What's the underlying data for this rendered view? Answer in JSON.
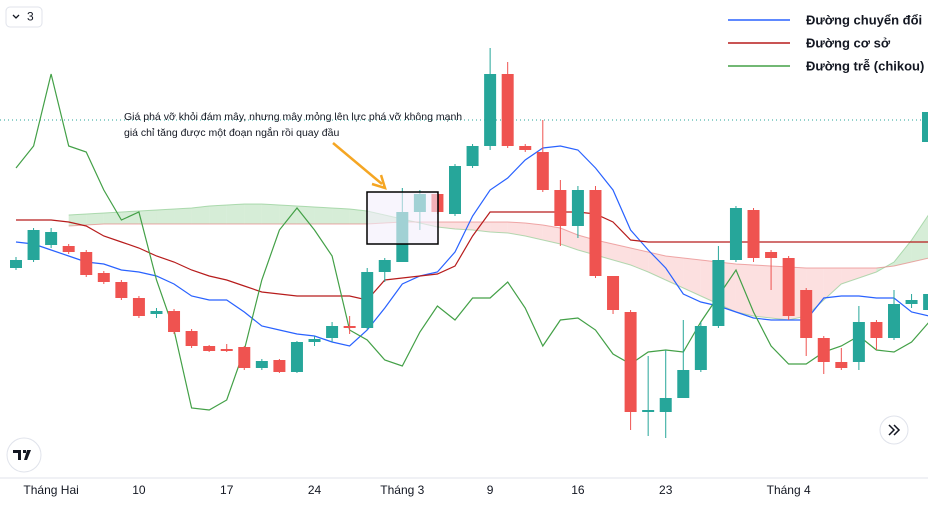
{
  "ui": {
    "interval_badge": "3"
  },
  "chart_data": {
    "type": "candlestick",
    "categories": [
      null,
      null,
      "Tháng Hai",
      null,
      null,
      null,
      null,
      "10",
      null,
      null,
      null,
      null,
      "17",
      null,
      null,
      null,
      null,
      "24",
      null,
      null,
      null,
      null,
      "Tháng 3",
      null,
      null,
      null,
      null,
      "9",
      null,
      null,
      null,
      null,
      "16",
      null,
      null,
      null,
      null,
      "23",
      null,
      null,
      null,
      null,
      null,
      null,
      "Tháng 4",
      null,
      null,
      null,
      null,
      null,
      null,
      null,
      null
    ],
    "open": [
      238,
      246,
      261,
      260,
      254,
      233,
      224,
      208,
      192,
      195,
      175,
      160,
      157,
      159,
      138,
      146,
      134,
      164,
      168,
      180,
      178,
      234,
      244,
      294,
      312,
      292,
      340,
      360,
      432,
      360,
      354,
      316,
      280,
      316,
      230,
      194,
      94,
      94,
      108,
      136,
      180,
      246,
      296,
      254,
      248,
      216,
      168,
      144,
      144,
      184,
      168,
      202,
      196
    ],
    "high": [
      249,
      278,
      278,
      262,
      256,
      235,
      226,
      210,
      198,
      197,
      177,
      161,
      162,
      160,
      147,
      147,
      165,
      170,
      184,
      190,
      238,
      248,
      318,
      316,
      314,
      342,
      362,
      458,
      444,
      362,
      386,
      326,
      320,
      320,
      230,
      196,
      150,
      156,
      186,
      184,
      260,
      300,
      298,
      256,
      250,
      218,
      170,
      158,
      200,
      186,
      216,
      212,
      216
    ],
    "low": [
      236,
      244,
      258,
      252,
      229,
      222,
      206,
      188,
      188,
      172,
      158,
      154,
      154,
      136,
      136,
      133,
      133,
      160,
      164,
      172,
      176,
      224,
      244,
      276,
      292,
      290,
      338,
      356,
      358,
      354,
      314,
      260,
      268,
      228,
      192,
      76,
      70,
      68,
      108,
      134,
      178,
      244,
      244,
      216,
      186,
      150,
      132,
      136,
      136,
      156,
      166,
      198,
      194
    ],
    "close": [
      246,
      276,
      274,
      254,
      231,
      224,
      208,
      190,
      195,
      174,
      160,
      155,
      155,
      138,
      145,
      134,
      164,
      167,
      180,
      178,
      234,
      246,
      294,
      312,
      294,
      340,
      360,
      432,
      360,
      356,
      316,
      280,
      316,
      230,
      196,
      94,
      96,
      108,
      136,
      180,
      246,
      298,
      248,
      248,
      190,
      168,
      144,
      138,
      184,
      168,
      202,
      206,
      212
    ],
    "up_color": "#26a69a",
    "down_color": "#ef5350",
    "series": [
      {
        "name": "Đường chuyển đổi",
        "color": "#2962ff",
        "values": [
          264,
          262,
          256,
          250,
          244,
          242,
          236,
          234,
          230,
          222,
          210,
          206,
          206,
          194,
          180,
          176,
          172,
          170,
          164,
          160,
          176,
          198,
          222,
          230,
          234,
          254,
          290,
          316,
          328,
          346,
          358,
          360,
          356,
          338,
          316,
          276,
          256,
          238,
          212,
          204,
          200,
          194,
          188,
          186,
          186,
          186,
          208,
          210,
          210,
          208,
          208,
          194,
          190
        ]
      },
      {
        "name": "Đường cơ sở",
        "color": "#b71c1c",
        "values": [
          286,
          286,
          286,
          284,
          280,
          270,
          264,
          258,
          250,
          244,
          236,
          230,
          226,
          220,
          214,
          212,
          210,
          210,
          210,
          210,
          206,
          226,
          228,
          230,
          232,
          240,
          270,
          294,
          294,
          294,
          294,
          294,
          294,
          292,
          284,
          266,
          264,
          264,
          264,
          264,
          264,
          264,
          264,
          264,
          264,
          264,
          264,
          264,
          264,
          264,
          264,
          264,
          264
        ]
      },
      {
        "name": "Đường trễ (chikou)",
        "color": "#43a047",
        "values": [
          338,
          360,
          432,
          360,
          354,
          316,
          286,
          294,
          226,
          176,
          98,
          96,
          106,
          156,
          226,
          276,
          298,
          276,
          250,
          176,
          166,
          146,
          140,
          174,
          200,
          186,
          208,
          208,
          224,
          198,
          160,
          186,
          188,
          176,
          152,
          142,
          154,
          156,
          154,
          184,
          210,
          236,
          194,
          160,
          142,
          142,
          154,
          160,
          170,
          156,
          154,
          164,
          184
        ]
      }
    ],
    "cloud": {
      "span_a": [
        null,
        null,
        null,
        291,
        292,
        293,
        294,
        295,
        296,
        297,
        298,
        300,
        301,
        302,
        302,
        301,
        300,
        299,
        298,
        297,
        295,
        291,
        287,
        283,
        279,
        277,
        276,
        274,
        273,
        270,
        266,
        262,
        256,
        251,
        246,
        241,
        234,
        226,
        218,
        210,
        202,
        194,
        190,
        188,
        186,
        190,
        206,
        222,
        228,
        234,
        244,
        266,
        292
      ],
      "span_b": [
        null,
        null,
        null,
        280,
        281,
        282,
        282,
        282,
        282,
        282,
        282,
        282,
        282,
        282,
        282,
        282,
        282,
        282,
        282,
        282,
        282,
        283,
        284,
        284,
        284,
        284,
        284,
        284,
        284,
        283,
        281,
        278,
        271,
        266,
        262,
        258,
        254,
        250,
        248,
        246,
        244,
        242,
        241,
        240,
        239,
        238,
        238,
        238,
        238,
        238,
        240,
        244,
        248
      ],
      "up_color": "#a5d6a7",
      "down_color": "#f8bbbb"
    },
    "price_line": 386,
    "ylim": [
      30,
      506
    ],
    "annotation": [
      "Giá phá vỡ khỏi đám mây, nhưng mây mỏng lên lực phá vỡ không mạnh",
      "giá chỉ tăng được một đoạn ngắn rồi quay đầu"
    ]
  }
}
